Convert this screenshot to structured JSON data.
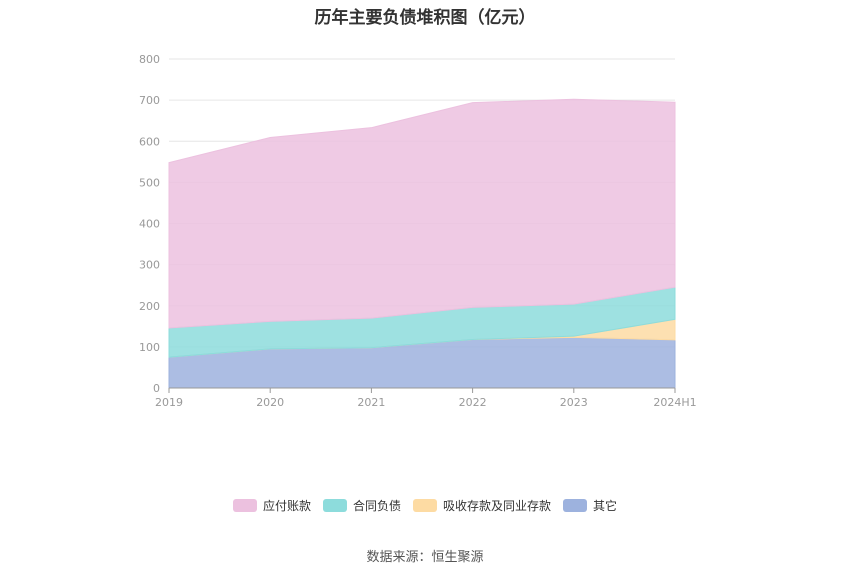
{
  "title": "历年主要负债堆积图（亿元）",
  "source": "数据来源：恒生聚源",
  "chart_data": {
    "type": "area",
    "stacked": true,
    "categories": [
      "2019",
      "2020",
      "2021",
      "2022",
      "2023",
      "2024H1"
    ],
    "ylim": [
      0,
      800
    ],
    "yticks": [
      0,
      100,
      200,
      300,
      400,
      500,
      600,
      700,
      800
    ],
    "grid": true,
    "legend_position": "bottom",
    "series": [
      {
        "name": "其它",
        "color": "#9db2de",
        "values": [
          75,
          95,
          98,
          118,
          123,
          117
        ]
      },
      {
        "name": "吸收存款及同业存款",
        "color": "#fddba3",
        "values": [
          0,
          0,
          0,
          0,
          3,
          50
        ]
      },
      {
        "name": "合同负债",
        "color": "#8ddcdc",
        "values": [
          71,
          67,
          72,
          78,
          78,
          78
        ]
      },
      {
        "name": "应付账款",
        "color": "#ecc1df",
        "values": [
          402,
          447,
          463,
          498,
          498,
          450
        ]
      }
    ],
    "legend_order": [
      "应付账款",
      "合同负债",
      "吸收存款及同业存款",
      "其它"
    ]
  }
}
